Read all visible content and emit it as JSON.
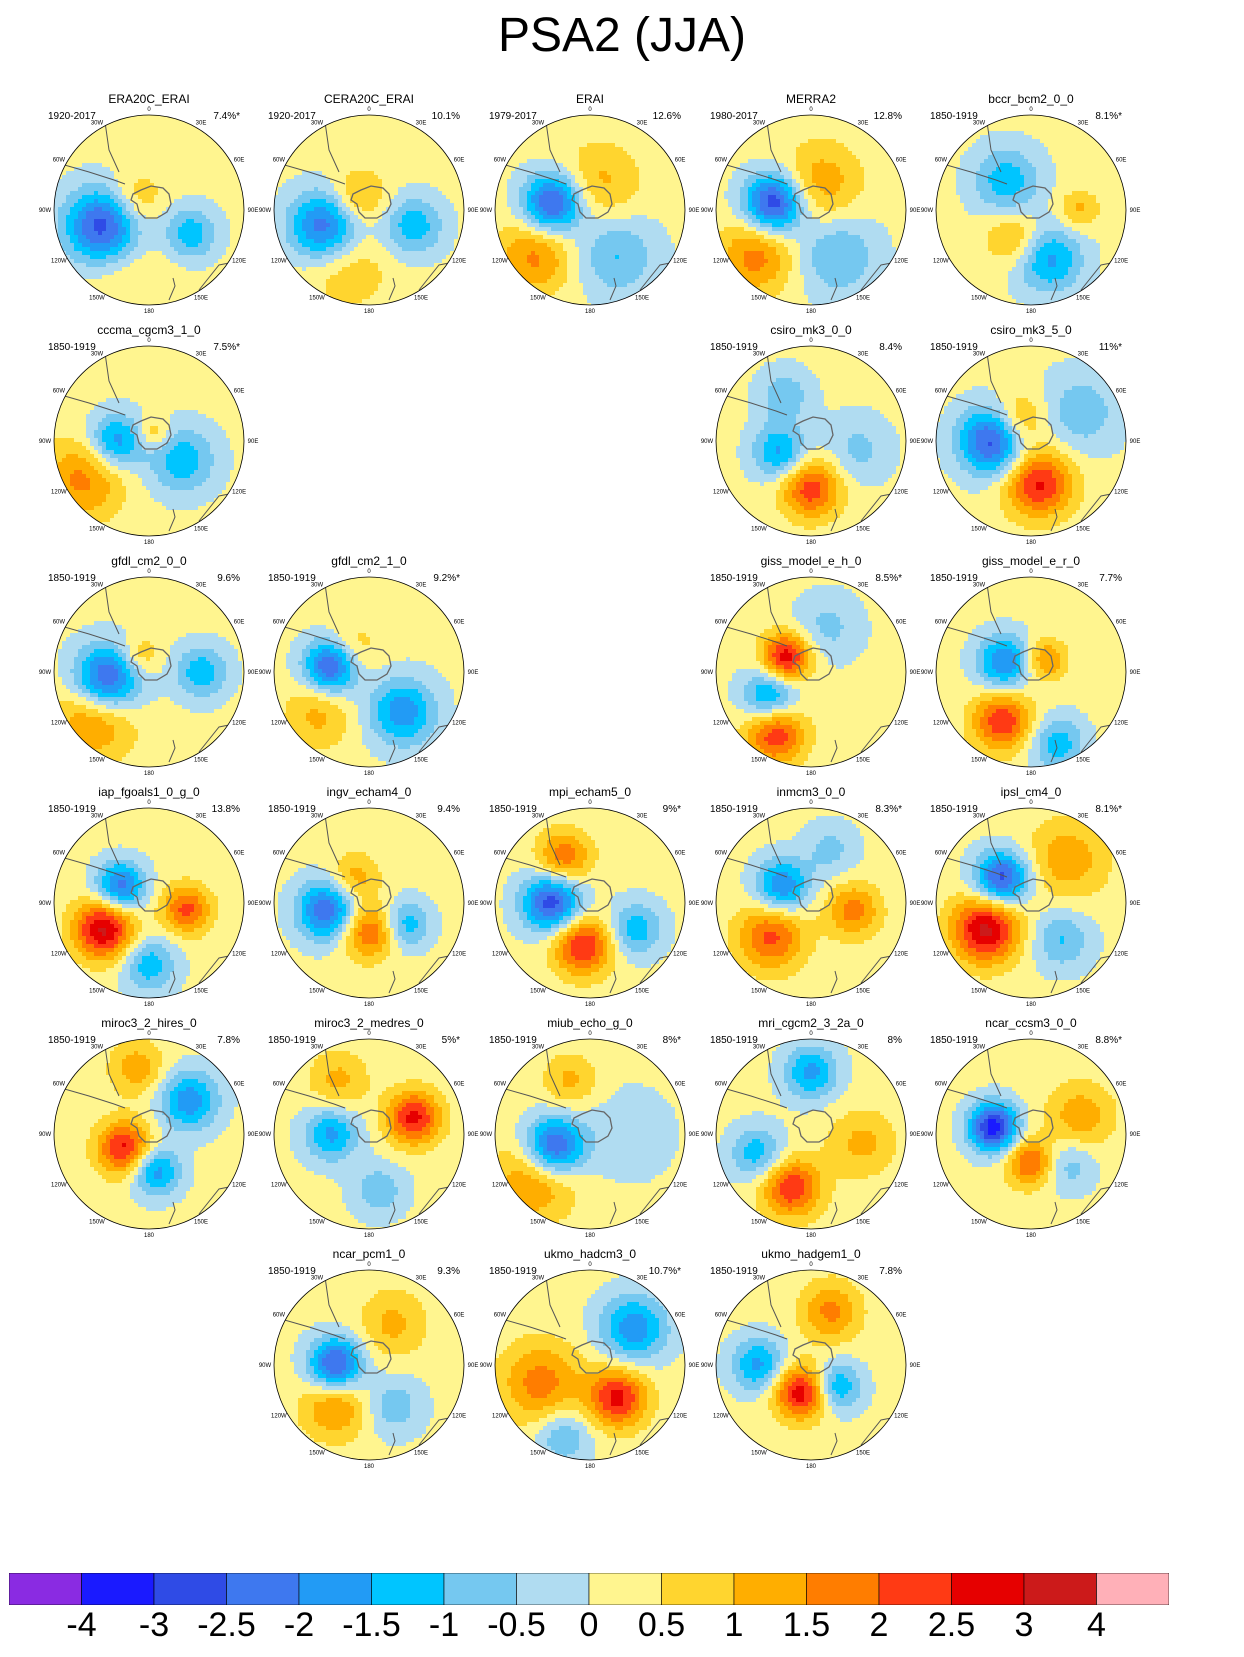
{
  "title": "PSA2 (JJA)",
  "lon_labels": [
    "0",
    "30E",
    "60E",
    "90E",
    "120E",
    "150E",
    "180",
    "150W",
    "120W",
    "90W",
    "60W",
    "30W"
  ],
  "chart_data": {
    "type": "heatmap",
    "title": "PSA2 (JJA)",
    "projection": "south-polar stereographic",
    "colorbar": {
      "ticks": [
        "-4",
        "-3",
        "-2.5",
        "-2",
        "-1.5",
        "-1",
        "-0.5",
        "0",
        "0.5",
        "1",
        "1.5",
        "2",
        "2.5",
        "3",
        "4"
      ],
      "colors": [
        "#8a2be2",
        "#1a1aff",
        "#2f4be6",
        "#3e78ef",
        "#229bf5",
        "#00c5ff",
        "#75c8f0",
        "#b0dcf1",
        "#fff58f",
        "#ffd52f",
        "#ffae00",
        "#ff7d00",
        "#ff3a14",
        "#e60000",
        "#cc1a1a",
        "#ffb0b8"
      ]
    },
    "panels": [
      {
        "name": "ERA20C_ERAI",
        "period": "1920-2017",
        "variance": "7.4%*",
        "row": 0,
        "col": 0,
        "blobs": [
          {
            "a": 250,
            "r": 0.52,
            "s": 0.28,
            "v": -3
          },
          {
            "a": 120,
            "r": 0.5,
            "s": 0.2,
            "v": -1.5
          },
          {
            "a": 310,
            "r": 0.18,
            "s": 0.2,
            "v": 1
          },
          {
            "a": 200,
            "r": 0.65,
            "s": 0.35,
            "v": 0.5
          }
        ]
      },
      {
        "name": "CERA20C_ERAI",
        "period": "1920-2017",
        "variance": "10.1%",
        "row": 0,
        "col": 1,
        "blobs": [
          {
            "a": 250,
            "r": 0.5,
            "s": 0.26,
            "v": -2.5
          },
          {
            "a": 110,
            "r": 0.5,
            "s": 0.22,
            "v": -1.5
          },
          {
            "a": 320,
            "r": 0.18,
            "s": 0.2,
            "v": 1.2
          },
          {
            "a": 200,
            "r": 0.65,
            "s": 0.3,
            "v": 0.8
          }
        ]
      },
      {
        "name": "ERAI",
        "period": "1979-2017",
        "variance": "12.6%",
        "row": 0,
        "col": 2,
        "blobs": [
          {
            "a": 280,
            "r": 0.4,
            "s": 0.22,
            "v": -3
          },
          {
            "a": 230,
            "r": 0.75,
            "s": 0.28,
            "v": 1.5
          },
          {
            "a": 150,
            "r": 0.55,
            "s": 0.3,
            "v": -1.2
          },
          {
            "a": 20,
            "r": 0.3,
            "s": 0.3,
            "v": 1
          }
        ]
      },
      {
        "name": "MERRA2",
        "period": "1980-2017",
        "variance": "12.8%",
        "row": 0,
        "col": 3,
        "blobs": [
          {
            "a": 280,
            "r": 0.4,
            "s": 0.22,
            "v": -3.2
          },
          {
            "a": 230,
            "r": 0.75,
            "s": 0.28,
            "v": 1.6
          },
          {
            "a": 150,
            "r": 0.55,
            "s": 0.3,
            "v": -1.2
          },
          {
            "a": 20,
            "r": 0.3,
            "s": 0.3,
            "v": 1.2
          }
        ]
      },
      {
        "name": "bccr_bcm2_0_0",
        "period": "1850-1919",
        "variance": "8.1%*",
        "row": 0,
        "col": 4,
        "blobs": [
          {
            "a": 320,
            "r": 0.4,
            "s": 0.25,
            "v": -1.5
          },
          {
            "a": 160,
            "r": 0.55,
            "s": 0.25,
            "v": -1.8
          },
          {
            "a": 210,
            "r": 0.35,
            "s": 0.2,
            "v": 1.2
          },
          {
            "a": 90,
            "r": 0.5,
            "s": 0.15,
            "v": 1
          }
        ]
      },
      {
        "name": "cccma_cgcm3_1_0",
        "period": "1850-1919",
        "variance": "7.5%*",
        "row": 1,
        "col": 0,
        "blobs": [
          {
            "a": 270,
            "r": 0.35,
            "s": 0.2,
            "v": -2
          },
          {
            "a": 120,
            "r": 0.4,
            "s": 0.25,
            "v": -1.5
          },
          {
            "a": 240,
            "r": 0.8,
            "s": 0.3,
            "v": 1.5
          },
          {
            "a": 30,
            "r": 0.1,
            "s": 0.12,
            "v": 1
          }
        ]
      },
      {
        "name": "csiro_mk3_0_0",
        "period": "1850-1919",
        "variance": "8.4%",
        "row": 1,
        "col": 3,
        "blobs": [
          {
            "a": 180,
            "r": 0.5,
            "s": 0.22,
            "v": 2.2
          },
          {
            "a": 250,
            "r": 0.35,
            "s": 0.2,
            "v": -1.8
          },
          {
            "a": 330,
            "r": 0.55,
            "s": 0.2,
            "v": -1
          },
          {
            "a": 100,
            "r": 0.5,
            "s": 0.25,
            "v": -0.8
          }
        ]
      },
      {
        "name": "csiro_mk3_5_0",
        "period": "1850-1919",
        "variance": "11%*",
        "row": 1,
        "col": 4,
        "blobs": [
          {
            "a": 270,
            "r": 0.4,
            "s": 0.25,
            "v": -3
          },
          {
            "a": 170,
            "r": 0.45,
            "s": 0.25,
            "v": 2.5
          },
          {
            "a": 330,
            "r": 0.25,
            "s": 0.2,
            "v": 1.5
          },
          {
            "a": 60,
            "r": 0.6,
            "s": 0.3,
            "v": -1
          }
        ]
      },
      {
        "name": "gfdl_cm2_0_0",
        "period": "1850-1919",
        "variance": "9.6%",
        "row": 2,
        "col": 0,
        "blobs": [
          {
            "a": 260,
            "r": 0.45,
            "s": 0.25,
            "v": -3
          },
          {
            "a": 230,
            "r": 0.75,
            "s": 0.3,
            "v": 1.6
          },
          {
            "a": 90,
            "r": 0.55,
            "s": 0.2,
            "v": -1.5
          },
          {
            "a": 330,
            "r": 0.2,
            "s": 0.15,
            "v": 1
          }
        ]
      },
      {
        "name": "gfdl_cm2_1_0",
        "period": "1850-1919",
        "variance": "9.2%*",
        "row": 2,
        "col": 1,
        "blobs": [
          {
            "a": 280,
            "r": 0.4,
            "s": 0.2,
            "v": -3
          },
          {
            "a": 140,
            "r": 0.55,
            "s": 0.25,
            "v": -2
          },
          {
            "a": 230,
            "r": 0.7,
            "s": 0.25,
            "v": 1
          },
          {
            "a": 320,
            "r": 0.3,
            "s": 0.2,
            "v": 1
          }
        ]
      },
      {
        "name": "giss_model_e_h_0",
        "period": "1850-1919",
        "variance": "8.5%*",
        "row": 2,
        "col": 3,
        "blobs": [
          {
            "a": 300,
            "r": 0.3,
            "s": 0.18,
            "v": 2.8
          },
          {
            "a": 240,
            "r": 0.5,
            "s": 0.2,
            "v": -2
          },
          {
            "a": 210,
            "r": 0.75,
            "s": 0.22,
            "v": 2.3
          },
          {
            "a": 20,
            "r": 0.5,
            "s": 0.25,
            "v": -0.8
          }
        ]
      },
      {
        "name": "giss_model_e_r_0",
        "period": "1850-1919",
        "variance": "7.7%",
        "row": 2,
        "col": 4,
        "blobs": [
          {
            "a": 290,
            "r": 0.3,
            "s": 0.2,
            "v": -2.2
          },
          {
            "a": 210,
            "r": 0.6,
            "s": 0.22,
            "v": 2.3
          },
          {
            "a": 160,
            "r": 0.8,
            "s": 0.2,
            "v": -1.5
          },
          {
            "a": 50,
            "r": 0.2,
            "s": 0.15,
            "v": 1.5
          }
        ]
      },
      {
        "name": "iap_fgoals1_0_g_0",
        "period": "1850-1919",
        "variance": "13.8%",
        "row": 3,
        "col": 0,
        "blobs": [
          {
            "a": 240,
            "r": 0.55,
            "s": 0.22,
            "v": 3
          },
          {
            "a": 300,
            "r": 0.35,
            "s": 0.18,
            "v": -2.5
          },
          {
            "a": 100,
            "r": 0.4,
            "s": 0.18,
            "v": 2
          },
          {
            "a": 180,
            "r": 0.65,
            "s": 0.2,
            "v": -1.5
          }
        ]
      },
      {
        "name": "ingv_echam4_0",
        "period": "1850-1919",
        "variance": "9.4%",
        "row": 3,
        "col": 1,
        "blobs": [
          {
            "a": 260,
            "r": 0.45,
            "s": 0.22,
            "v": -2.6
          },
          {
            "a": 180,
            "r": 0.3,
            "s": 0.2,
            "v": 2
          },
          {
            "a": 120,
            "r": 0.45,
            "s": 0.18,
            "v": -1.5
          },
          {
            "a": 330,
            "r": 0.3,
            "s": 0.18,
            "v": 1.2
          }
        ]
      },
      {
        "name": "mpi_echam5_0",
        "period": "1850-1919",
        "variance": "9%*",
        "row": 3,
        "col": 2,
        "blobs": [
          {
            "a": 270,
            "r": 0.4,
            "s": 0.22,
            "v": -3
          },
          {
            "a": 190,
            "r": 0.45,
            "s": 0.22,
            "v": 2.5
          },
          {
            "a": 330,
            "r": 0.55,
            "s": 0.2,
            "v": 1.8
          },
          {
            "a": 120,
            "r": 0.55,
            "s": 0.2,
            "v": -1.5
          }
        ]
      },
      {
        "name": "inmcm3_0_0",
        "period": "1850-1919",
        "variance": "8.3%*",
        "row": 3,
        "col": 3,
        "blobs": [
          {
            "a": 300,
            "r": 0.35,
            "s": 0.2,
            "v": -2.2
          },
          {
            "a": 230,
            "r": 0.55,
            "s": 0.25,
            "v": 2
          },
          {
            "a": 100,
            "r": 0.45,
            "s": 0.2,
            "v": 1.6
          },
          {
            "a": 20,
            "r": 0.6,
            "s": 0.2,
            "v": -0.8
          }
        ]
      },
      {
        "name": "ipsl_cm4_0",
        "period": "1850-1919",
        "variance": "8.1%*",
        "row": 3,
        "col": 4,
        "blobs": [
          {
            "a": 310,
            "r": 0.4,
            "s": 0.2,
            "v": -3
          },
          {
            "a": 240,
            "r": 0.55,
            "s": 0.25,
            "v": 3
          },
          {
            "a": 40,
            "r": 0.6,
            "s": 0.3,
            "v": 1.2
          },
          {
            "a": 140,
            "r": 0.5,
            "s": 0.22,
            "v": -1.2
          }
        ]
      },
      {
        "name": "miroc3_2_hires_0",
        "period": "1850-1919",
        "variance": "7.8%",
        "row": 4,
        "col": 0,
        "blobs": [
          {
            "a": 240,
            "r": 0.3,
            "s": 0.2,
            "v": 2.5
          },
          {
            "a": 170,
            "r": 0.4,
            "s": 0.18,
            "v": -2
          },
          {
            "a": 50,
            "r": 0.55,
            "s": 0.22,
            "v": -2
          },
          {
            "a": 350,
            "r": 0.7,
            "s": 0.2,
            "v": 1.2
          }
        ]
      },
      {
        "name": "miroc3_2_medres_0",
        "period": "1850-1919",
        "variance": "5%*",
        "row": 4,
        "col": 1,
        "blobs": [
          {
            "a": 70,
            "r": 0.5,
            "s": 0.2,
            "v": 2.5
          },
          {
            "a": 270,
            "r": 0.4,
            "s": 0.2,
            "v": -1.8
          },
          {
            "a": 170,
            "r": 0.6,
            "s": 0.2,
            "v": -1
          },
          {
            "a": 330,
            "r": 0.65,
            "s": 0.22,
            "v": 1
          }
        ]
      },
      {
        "name": "miub_echo_g_0",
        "period": "1850-1919",
        "variance": "8%*",
        "row": 4,
        "col": 2,
        "blobs": [
          {
            "a": 250,
            "r": 0.4,
            "s": 0.22,
            "v": -3
          },
          {
            "a": 230,
            "r": 0.75,
            "s": 0.3,
            "v": 1.5
          },
          {
            "a": 340,
            "r": 0.6,
            "s": 0.2,
            "v": 1
          },
          {
            "a": 90,
            "r": 0.4,
            "s": 0.35,
            "v": -0.5
          }
        ]
      },
      {
        "name": "mri_cgcm2_3_2a_0",
        "period": "1850-1919",
        "variance": "8%",
        "row": 4,
        "col": 3,
        "blobs": [
          {
            "a": 200,
            "r": 0.6,
            "s": 0.22,
            "v": 2.3
          },
          {
            "a": 0,
            "r": 0.65,
            "s": 0.2,
            "v": -1.8
          },
          {
            "a": 250,
            "r": 0.6,
            "s": 0.2,
            "v": -1.5
          },
          {
            "a": 100,
            "r": 0.55,
            "s": 0.25,
            "v": 1
          }
        ]
      },
      {
        "name": "ncar_ccsm3_0_0",
        "period": "1850-1919",
        "variance": "8.8%*",
        "row": 4,
        "col": 4,
        "blobs": [
          {
            "a": 280,
            "r": 0.4,
            "s": 0.18,
            "v": -3.5
          },
          {
            "a": 180,
            "r": 0.3,
            "s": 0.18,
            "v": 2
          },
          {
            "a": 70,
            "r": 0.55,
            "s": 0.25,
            "v": 1.2
          },
          {
            "a": 130,
            "r": 0.5,
            "s": 0.2,
            "v": -1
          }
        ]
      },
      {
        "name": "ncar_pcm1_0",
        "period": "1850-1919",
        "variance": "9.3%",
        "row": 5,
        "col": 1,
        "blobs": [
          {
            "a": 270,
            "r": 0.35,
            "s": 0.2,
            "v": -3
          },
          {
            "a": 220,
            "r": 0.55,
            "s": 0.25,
            "v": 1.5
          },
          {
            "a": 150,
            "r": 0.5,
            "s": 0.22,
            "v": -1
          },
          {
            "a": 30,
            "r": 0.5,
            "s": 0.25,
            "v": 1
          }
        ]
      },
      {
        "name": "ukmo_hadcm3_0",
        "period": "1850-1919",
        "variance": "10.7%*",
        "row": 5,
        "col": 2,
        "blobs": [
          {
            "a": 140,
            "r": 0.45,
            "s": 0.22,
            "v": 2.5
          },
          {
            "a": 50,
            "r": 0.6,
            "s": 0.25,
            "v": -2
          },
          {
            "a": 250,
            "r": 0.55,
            "s": 0.3,
            "v": 1.6
          },
          {
            "a": 200,
            "r": 0.8,
            "s": 0.2,
            "v": -1.2
          }
        ]
      },
      {
        "name": "ukmo_hadgem1_0",
        "period": "1850-1919",
        "variance": "7.8%",
        "row": 5,
        "col": 3,
        "blobs": [
          {
            "a": 200,
            "r": 0.3,
            "s": 0.2,
            "v": 2.8
          },
          {
            "a": 270,
            "r": 0.55,
            "s": 0.2,
            "v": -1.8
          },
          {
            "a": 130,
            "r": 0.35,
            "s": 0.18,
            "v": -1.8
          },
          {
            "a": 20,
            "r": 0.6,
            "s": 0.22,
            "v": 1.5
          }
        ]
      }
    ]
  }
}
